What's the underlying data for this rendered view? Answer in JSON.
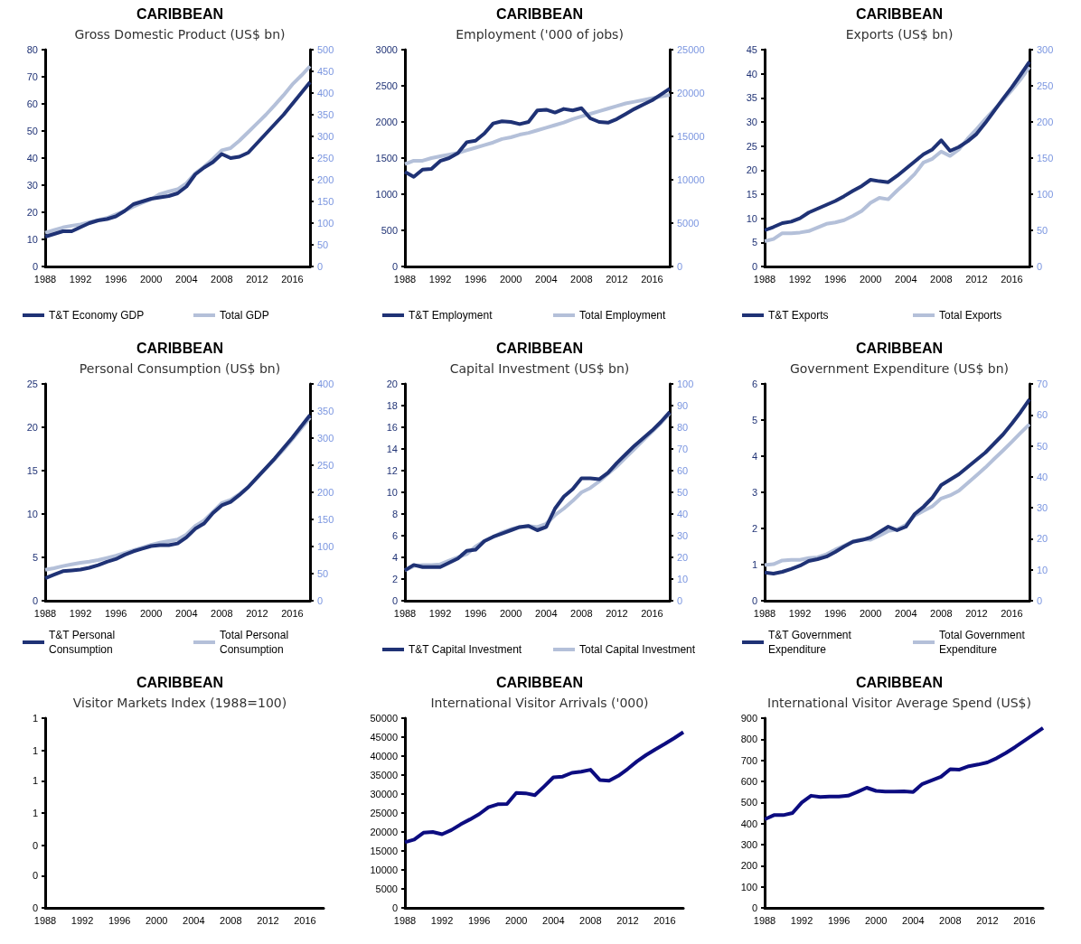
{
  "chart_data": [
    {
      "type": "line",
      "title": "CARIBBEAN",
      "subtitle": "Gross Domestic Product (US$ bn)",
      "legend": "bottom",
      "categories": [
        "1988",
        null,
        null,
        null,
        "1992",
        null,
        null,
        null,
        "1996",
        null,
        null,
        null,
        "2000",
        null,
        null,
        null,
        "2004",
        null,
        null,
        null,
        "2008",
        null,
        null,
        null,
        "2012",
        null,
        null,
        null,
        "2016",
        null,
        null
      ],
      "ylim": [
        0,
        80
      ],
      "yticks": [
        0,
        10,
        20,
        30,
        40,
        50,
        60,
        70,
        80
      ],
      "y2lim": [
        0,
        500
      ],
      "y2ticks": [
        0,
        50,
        100,
        150,
        200,
        250,
        300,
        350,
        400,
        450,
        500
      ],
      "series": [
        {
          "name": "T&T Economy GDP",
          "color": "#1f3275",
          "values": [
            11,
            12,
            13,
            13,
            14.5,
            16,
            17,
            17.5,
            18.5,
            20.5,
            23,
            24,
            25,
            25.5,
            26,
            27,
            29.5,
            34,
            36.5,
            38.5,
            41.5,
            40,
            40.5,
            42,
            45.5,
            49,
            52.5,
            56,
            60,
            64,
            68
          ]
        },
        {
          "name": "Total GDP",
          "color": "#b4c0d9",
          "axis": "y2",
          "values": [
            78,
            84,
            90,
            94,
            97,
            102,
            107,
            112,
            120,
            128,
            138,
            147,
            155,
            167,
            173,
            178,
            192,
            215,
            230,
            248,
            268,
            273,
            290,
            310,
            330,
            350,
            372,
            395,
            420,
            440,
            462
          ]
        }
      ]
    },
    {
      "type": "line",
      "title": "CARIBBEAN",
      "subtitle": "Employment ('000 of jobs)",
      "legend": "bottom",
      "categories": [
        "1988",
        null,
        null,
        null,
        "1992",
        null,
        null,
        null,
        "1996",
        null,
        null,
        null,
        "2000",
        null,
        null,
        null,
        "2004",
        null,
        null,
        null,
        "2008",
        null,
        null,
        null,
        "2012",
        null,
        null,
        null,
        "2016",
        null,
        null
      ],
      "ylim": [
        0,
        3000
      ],
      "yticks": [
        0,
        500,
        1000,
        1500,
        2000,
        2500,
        3000
      ],
      "y2lim": [
        0,
        25000
      ],
      "y2ticks": [
        0,
        5000,
        10000,
        15000,
        20000,
        25000
      ],
      "series": [
        {
          "name": "T&T Employment",
          "color": "#1f3275",
          "values": [
            1310,
            1240,
            1340,
            1350,
            1460,
            1500,
            1570,
            1720,
            1740,
            1840,
            1980,
            2010,
            2000,
            1970,
            2000,
            2160,
            2170,
            2130,
            2180,
            2160,
            2190,
            2050,
            2000,
            1990,
            2040,
            2110,
            2180,
            2240,
            2300,
            2380,
            2460
          ]
        },
        {
          "name": "Total Employment",
          "color": "#b4c0d9",
          "axis": "y2",
          "values": [
            11800,
            12200,
            12200,
            12500,
            12700,
            12900,
            13100,
            13400,
            13700,
            14000,
            14300,
            14700,
            14900,
            15200,
            15400,
            15700,
            16000,
            16300,
            16600,
            17000,
            17300,
            17600,
            17900,
            18200,
            18500,
            18800,
            19000,
            19200,
            19400,
            19600,
            19800
          ]
        }
      ]
    },
    {
      "type": "line",
      "title": "CARIBBEAN",
      "subtitle": "Exports (US$ bn)",
      "legend": "bottom",
      "categories": [
        "1988",
        null,
        null,
        null,
        "1992",
        null,
        null,
        null,
        "1996",
        null,
        null,
        null,
        "2000",
        null,
        null,
        null,
        "2004",
        null,
        null,
        null,
        "2008",
        null,
        null,
        null,
        "2012",
        null,
        null,
        null,
        "2016",
        null,
        null
      ],
      "ylim": [
        0,
        45
      ],
      "yticks": [
        0,
        5,
        10,
        15,
        20,
        25,
        30,
        35,
        40,
        45
      ],
      "y2lim": [
        0,
        300
      ],
      "y2ticks": [
        0,
        50,
        100,
        150,
        200,
        250,
        300
      ],
      "series": [
        {
          "name": "T&T Exports",
          "color": "#1f3275",
          "values": [
            7.5,
            8.2,
            9,
            9.3,
            10,
            11.2,
            12,
            12.8,
            13.6,
            14.6,
            15.7,
            16.7,
            18,
            17.7,
            17.5,
            18.8,
            20.3,
            21.8,
            23.3,
            24.3,
            26.2,
            24,
            24.8,
            26,
            27.5,
            29.8,
            32.3,
            34.8,
            37.2,
            39.8,
            42.5
          ]
        },
        {
          "name": "Total Exports",
          "color": "#b4c0d9",
          "axis": "y2",
          "values": [
            35,
            38,
            46,
            46,
            47,
            49,
            54,
            59,
            61,
            64,
            70,
            77,
            88,
            95,
            93,
            105,
            116,
            128,
            144,
            149,
            159,
            153,
            162,
            177,
            190,
            204,
            217,
            230,
            244,
            259,
            276
          ]
        }
      ]
    },
    {
      "type": "line",
      "title": "CARIBBEAN",
      "subtitle": "Personal Consumption (US$ bn)",
      "legend": "bottom",
      "categories": [
        "1988",
        null,
        null,
        null,
        "1992",
        null,
        null,
        null,
        "1996",
        null,
        null,
        null,
        "2000",
        null,
        null,
        null,
        "2004",
        null,
        null,
        null,
        "2008",
        null,
        null,
        null,
        "2012",
        null,
        null,
        null,
        "2016",
        null,
        null
      ],
      "ylim": [
        0,
        25
      ],
      "yticks": [
        0,
        5,
        10,
        15,
        20,
        25
      ],
      "y2lim": [
        0,
        400
      ],
      "y2ticks": [
        0,
        50,
        100,
        150,
        200,
        250,
        300,
        350,
        400
      ],
      "series": [
        {
          "name": "T&T Personal Consumption",
          "color": "#1f3275",
          "values": [
            2.6,
            3,
            3.4,
            3.5,
            3.6,
            3.8,
            4.1,
            4.5,
            4.8,
            5.3,
            5.7,
            6,
            6.3,
            6.4,
            6.4,
            6.6,
            7.3,
            8.3,
            8.9,
            10.1,
            11,
            11.4,
            12.2,
            13.1,
            14.2,
            15.3,
            16.4,
            17.6,
            18.8,
            20.1,
            21.4
          ]
        },
        {
          "name": "Total Personal Consumption",
          "color": "#b4c0d9",
          "axis": "y2",
          "values": [
            57,
            60,
            64,
            67,
            70,
            72,
            75,
            79,
            83,
            88,
            93,
            98,
            103,
            107,
            110,
            113,
            122,
            138,
            148,
            164,
            180,
            186,
            197,
            210,
            227,
            244,
            261,
            279,
            298,
            318,
            338
          ]
        }
      ]
    },
    {
      "type": "line",
      "title": "CARIBBEAN",
      "subtitle": "Capital Investment (US$ bn)",
      "legend": "bottom",
      "categories": [
        "1988",
        null,
        null,
        null,
        "1992",
        null,
        null,
        null,
        "1996",
        null,
        null,
        null,
        "2000",
        null,
        null,
        null,
        "2004",
        null,
        null,
        null,
        "2008",
        null,
        null,
        null,
        "2012",
        null,
        null,
        null,
        "2016",
        null,
        null
      ],
      "ylim": [
        0,
        20
      ],
      "yticks": [
        0,
        2,
        4,
        6,
        8,
        10,
        12,
        14,
        16,
        18,
        20
      ],
      "y2lim": [
        0,
        100
      ],
      "y2ticks": [
        0,
        10,
        20,
        30,
        40,
        50,
        60,
        70,
        80,
        90,
        100
      ],
      "series": [
        {
          "name": "T&T Capital Investment",
          "color": "#1f3275",
          "values": [
            2.8,
            3.3,
            3.1,
            3.1,
            3.1,
            3.5,
            3.9,
            4.6,
            4.7,
            5.5,
            5.9,
            6.2,
            6.5,
            6.8,
            6.9,
            6.5,
            6.8,
            8.5,
            9.6,
            10.3,
            11.3,
            11.3,
            11.2,
            11.8,
            12.7,
            13.5,
            14.3,
            15,
            15.7,
            16.5,
            17.4
          ]
        },
        {
          "name": "Total Capital Investment",
          "color": "#b4c0d9",
          "axis": "y2",
          "values": [
            14,
            16,
            16.5,
            16.5,
            16.8,
            18.5,
            20,
            21.5,
            25,
            27.5,
            29.5,
            31.5,
            33,
            34,
            34.5,
            34,
            35.5,
            39.5,
            42.5,
            46,
            50,
            52,
            55,
            58.5,
            62,
            66,
            70,
            74,
            78,
            82,
            86.5
          ]
        }
      ]
    },
    {
      "type": "line",
      "title": "CARIBBEAN",
      "subtitle": "Government Expenditure (US$ bn)",
      "legend": "bottom",
      "categories": [
        "1988",
        null,
        null,
        null,
        "1992",
        null,
        null,
        null,
        "1996",
        null,
        null,
        null,
        "2000",
        null,
        null,
        null,
        "2004",
        null,
        null,
        null,
        "2008",
        null,
        null,
        null,
        "2012",
        null,
        null,
        null,
        "2016",
        null,
        null
      ],
      "ylim": [
        0,
        6
      ],
      "yticks": [
        0,
        1,
        2,
        3,
        4,
        5,
        6
      ],
      "y2lim": [
        0,
        70
      ],
      "y2ticks": [
        0,
        10,
        20,
        30,
        40,
        50,
        60,
        70
      ],
      "series": [
        {
          "name": "T&T Government Expenditure",
          "color": "#1f3275",
          "values": [
            0.78,
            0.75,
            0.8,
            0.88,
            0.97,
            1.1,
            1.15,
            1.22,
            1.35,
            1.5,
            1.63,
            1.68,
            1.75,
            1.9,
            2.05,
            1.95,
            2.05,
            2.4,
            2.6,
            2.85,
            3.2,
            3.35,
            3.5,
            3.7,
            3.9,
            4.1,
            4.35,
            4.6,
            4.9,
            5.22,
            5.57
          ]
        },
        {
          "name": "Total Government Expenditure",
          "color": "#b4c0d9",
          "axis": "y2",
          "values": [
            11.5,
            11.8,
            13,
            13.2,
            13.2,
            13.8,
            14,
            15,
            16.5,
            17.8,
            19.2,
            19.8,
            19.7,
            21,
            22.5,
            23,
            24.5,
            27.5,
            29,
            30.5,
            33,
            34,
            35.5,
            38,
            40.5,
            43,
            45.8,
            48.5,
            51.3,
            54.2,
            57
          ]
        }
      ]
    },
    {
      "type": "line",
      "title": "CARIBBEAN",
      "subtitle": "Visitor Markets Index (1988=100)",
      "categories": [
        "1988",
        null,
        null,
        null,
        "1992",
        null,
        null,
        null,
        "1996",
        null,
        null,
        null,
        "2000",
        null,
        null,
        null,
        "2004",
        null,
        null,
        null,
        "2008",
        null,
        null,
        null,
        "2012",
        null,
        null,
        null,
        "2016",
        null,
        null
      ],
      "ylim": [
        0,
        1
      ],
      "yticks": [
        0,
        {
          "value": 0.17,
          "label": "0"
        },
        {
          "value": 0.33,
          "label": "0"
        },
        {
          "value": 0.5,
          "label": "1"
        },
        {
          "value": 0.67,
          "label": "1"
        },
        {
          "value": 0.83,
          "label": "1"
        },
        1
      ]
    },
    {
      "type": "line",
      "title": "CARIBBEAN",
      "subtitle": "International Visitor Arrivals ('000)",
      "categories": [
        "1988",
        null,
        null,
        null,
        "1992",
        null,
        null,
        null,
        "1996",
        null,
        null,
        null,
        "2000",
        null,
        null,
        null,
        "2004",
        null,
        null,
        null,
        "2008",
        null,
        null,
        null,
        "2012",
        null,
        null,
        null,
        "2016",
        null,
        null
      ],
      "ylim": [
        0,
        50000
      ],
      "yticks": [
        0,
        5000,
        10000,
        15000,
        20000,
        25000,
        30000,
        35000,
        40000,
        45000,
        50000
      ],
      "series": [
        {
          "color": "#0c0c80",
          "values": [
            17300,
            18000,
            19800,
            20000,
            19400,
            20500,
            22000,
            23300,
            24700,
            26500,
            27300,
            27400,
            30300,
            30200,
            29700,
            32000,
            34400,
            34600,
            35600,
            35900,
            36400,
            33700,
            33500,
            34800,
            36600,
            38600,
            40300,
            41800,
            43200,
            44700,
            46300
          ]
        }
      ]
    },
    {
      "type": "line",
      "title": "CARIBBEAN",
      "subtitle": "International Visitor Average Spend (US$)",
      "categories": [
        "1988",
        null,
        null,
        null,
        "1992",
        null,
        null,
        null,
        "1996",
        null,
        null,
        null,
        "2000",
        null,
        null,
        null,
        "2004",
        null,
        null,
        null,
        "2008",
        null,
        null,
        null,
        "2012",
        null,
        null,
        null,
        "2016",
        null,
        null
      ],
      "ylim": [
        0,
        900
      ],
      "yticks": [
        0,
        100,
        200,
        300,
        400,
        500,
        600,
        700,
        800,
        900
      ],
      "series": [
        {
          "color": "#0c0c80",
          "values": [
            420,
            440,
            440,
            450,
            500,
            532,
            526,
            528,
            528,
            532,
            550,
            570,
            555,
            552,
            552,
            553,
            550,
            588,
            605,
            622,
            658,
            656,
            672,
            680,
            690,
            710,
            735,
            763,
            793,
            823,
            853
          ]
        }
      ]
    }
  ]
}
